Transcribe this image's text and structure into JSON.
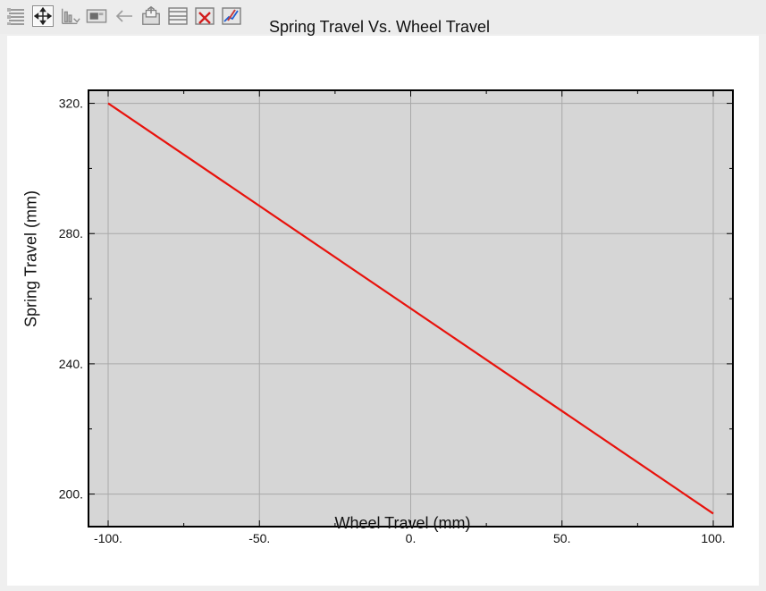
{
  "toolbar": {
    "buttons": [
      {
        "icon": "layers-icon",
        "active": false
      },
      {
        "icon": "pan-icon",
        "active": true
      },
      {
        "icon": "axis-scale-icon",
        "active": false
      },
      {
        "icon": "view-window-icon",
        "active": false
      },
      {
        "icon": "back-arrow-icon",
        "active": false
      },
      {
        "icon": "export-icon",
        "active": false
      },
      {
        "icon": "split-layout-icon",
        "active": false
      },
      {
        "icon": "delete-plot-icon",
        "active": false
      },
      {
        "icon": "edit-curve-icon",
        "active": false
      }
    ]
  },
  "colors": {
    "plot_background": "#d6d6d6",
    "grid": "#a9a9a9",
    "series_line": "#e8120c",
    "frame": "#000000"
  },
  "chart_data": {
    "type": "line",
    "title": "Spring Travel Vs. Wheel Travel",
    "xlabel": "Wheel Travel (mm)",
    "ylabel": "Spring Travel (mm)",
    "xlim": [
      -106.5,
      106.5
    ],
    "ylim": [
      190,
      324
    ],
    "xticks": [
      -100,
      -50,
      0,
      50,
      100
    ],
    "xtick_labels": [
      "-100.",
      "-50.",
      "0.",
      "50.",
      "100."
    ],
    "yticks": [
      200,
      240,
      280,
      320
    ],
    "ytick_labels": [
      "200.",
      "240.",
      "280.",
      "320."
    ],
    "grid": true,
    "series": [
      {
        "x": [
          -100,
          100
        ],
        "y": [
          320,
          194
        ]
      }
    ]
  }
}
